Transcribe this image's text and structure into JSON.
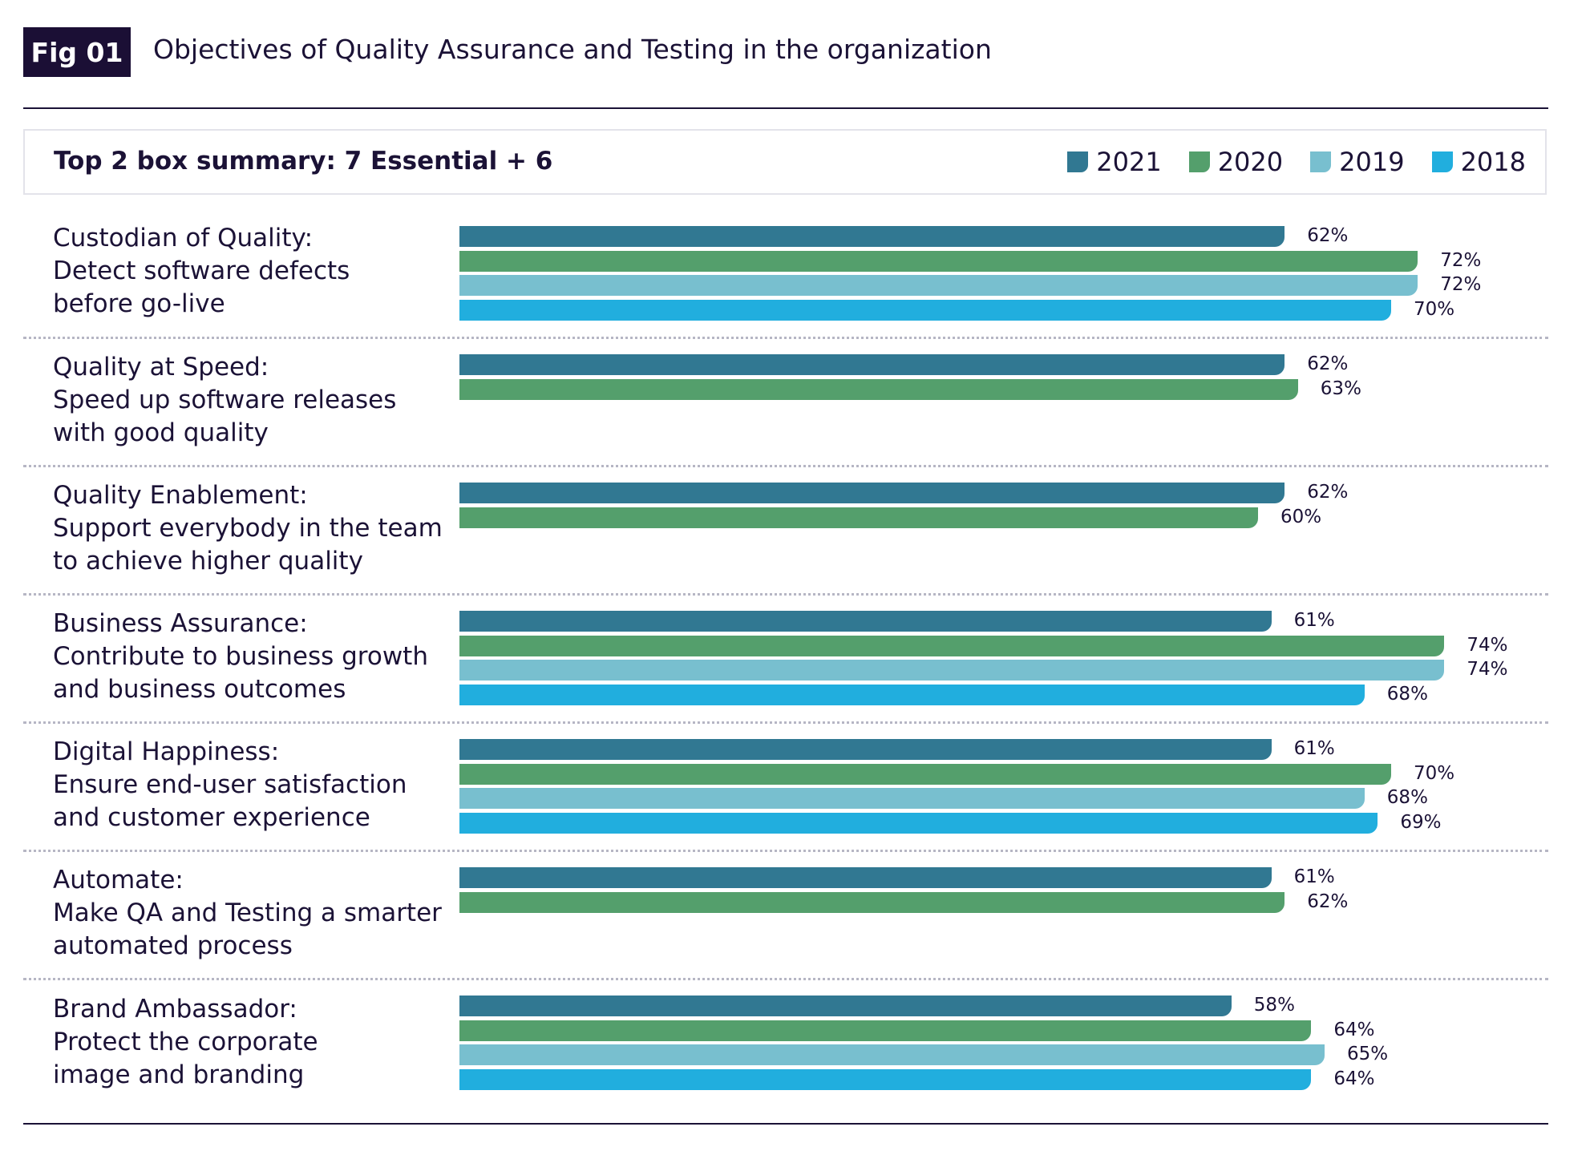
{
  "figure": {
    "badge": "Fig 01",
    "title": "Objectives of Quality Assurance and Testing in the organization"
  },
  "chart_data": {
    "type": "bar",
    "orientation": "horizontal",
    "title": "Top 2 box summary: 7 Essential + 6",
    "legend_placement": "top-right",
    "value_suffix": "%",
    "xlim": [
      0,
      100
    ],
    "grid": false,
    "series": [
      {
        "name": "2021",
        "color": "#317892"
      },
      {
        "name": "2020",
        "color": "#549f6c"
      },
      {
        "name": "2019",
        "color": "#78bfcf"
      },
      {
        "name": "2018",
        "color": "#21aede"
      }
    ],
    "categories": [
      {
        "lines": [
          "Custodian of Quality:",
          "Detect software defects",
          "before go-live"
        ],
        "values": [
          62,
          72,
          72,
          70
        ]
      },
      {
        "lines": [
          "Quality at Speed:",
          "Speed up software releases",
          "with good quality"
        ],
        "values": [
          62,
          63
        ]
      },
      {
        "lines": [
          "Quality Enablement:",
          "Support everybody in the team",
          "to achieve higher quality"
        ],
        "values": [
          62,
          60
        ]
      },
      {
        "lines": [
          "Business Assurance:",
          "Contribute to business growth",
          "and business outcomes"
        ],
        "values": [
          61,
          74,
          74,
          68
        ]
      },
      {
        "lines": [
          "Digital Happiness:",
          "Ensure end-user satisfaction",
          "and customer experience"
        ],
        "values": [
          61,
          70,
          68,
          69
        ]
      },
      {
        "lines": [
          "Automate:",
          "Make QA and Testing a smarter",
          "automated process"
        ],
        "values": [
          61,
          62
        ]
      },
      {
        "lines": [
          "Brand Ambassador:",
          "Protect the corporate",
          "image and branding"
        ],
        "values": [
          58,
          64,
          65,
          64
        ]
      }
    ]
  }
}
